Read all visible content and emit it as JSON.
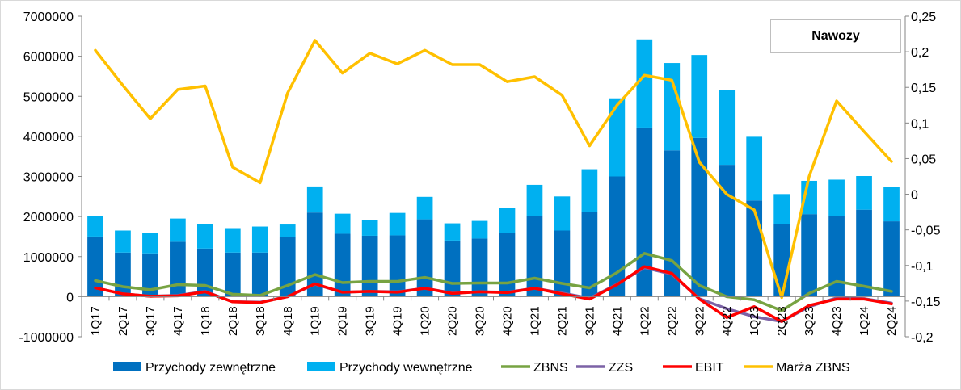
{
  "chart_data": {
    "type": "bar",
    "title": "Nawozy",
    "categories": [
      "1Q17",
      "2Q17",
      "3Q17",
      "4Q17",
      "1Q18",
      "2Q18",
      "3Q18",
      "4Q18",
      "1Q19",
      "2Q19",
      "3Q19",
      "4Q19",
      "1Q20",
      "2Q20",
      "3Q20",
      "4Q20",
      "1Q21",
      "2Q21",
      "3Q21",
      "4Q21",
      "1Q22",
      "2Q22",
      "3Q22",
      "4Q22",
      "1Q23",
      "2Q23",
      "3Q23",
      "4Q23",
      "1Q24",
      "2Q24"
    ],
    "y_left": {
      "min": -1000000,
      "max": 7000000,
      "step": 1000000,
      "ticks": [
        "-1000000",
        "0",
        "1000000",
        "2000000",
        "3000000",
        "4000000",
        "5000000",
        "6000000",
        "7000000"
      ]
    },
    "y_right": {
      "min": -0.2,
      "max": 0.25,
      "step": 0.05,
      "ticks": [
        "-0,2",
        "-0,15",
        "-0,1",
        "-0,05",
        "0",
        "0,05",
        "0,1",
        "0,15",
        "0,2",
        "0,25"
      ]
    },
    "legend_position": "bottom",
    "grid": false,
    "series": [
      {
        "name": "Przychody zewnętrzne",
        "kind": "bar-stacked",
        "axis": "left",
        "color": "#0070C0",
        "values": [
          1500000,
          1100000,
          1080000,
          1370000,
          1200000,
          1100000,
          1100000,
          1480000,
          2100000,
          1570000,
          1520000,
          1530000,
          1930000,
          1400000,
          1450000,
          1590000,
          2010000,
          1650000,
          2110000,
          3000000,
          4220000,
          3650000,
          3960000,
          3290000,
          2400000,
          1820000,
          2060000,
          2010000,
          2170000,
          1880000
        ]
      },
      {
        "name": "Przychody wewnętrzne",
        "kind": "bar-stacked",
        "axis": "left",
        "color": "#00B0F0",
        "values": [
          510000,
          550000,
          510000,
          580000,
          610000,
          610000,
          650000,
          320000,
          650000,
          500000,
          400000,
          560000,
          560000,
          430000,
          440000,
          620000,
          780000,
          850000,
          1070000,
          1950000,
          2200000,
          2180000,
          2070000,
          1860000,
          1590000,
          740000,
          830000,
          910000,
          840000,
          850000
        ]
      },
      {
        "name": "ZBNS",
        "kind": "line",
        "axis": "left",
        "color": "#77A342",
        "values": [
          400000,
          250000,
          170000,
          300000,
          280000,
          60000,
          30000,
          280000,
          550000,
          350000,
          380000,
          380000,
          480000,
          330000,
          340000,
          340000,
          460000,
          330000,
          220000,
          600000,
          1080000,
          900000,
          280000,
          0,
          -80000,
          -350000,
          80000,
          380000,
          260000,
          130000
        ]
      },
      {
        "name": "ZZS",
        "kind": "line",
        "axis": "left",
        "color": "#7C62A6",
        "values": [
          220000,
          70000,
          10000,
          30000,
          130000,
          -130000,
          -140000,
          0,
          310000,
          110000,
          130000,
          120000,
          210000,
          90000,
          120000,
          110000,
          210000,
          90000,
          -40000,
          310000,
          720000,
          560000,
          -50000,
          -300000,
          -500000,
          -620000,
          -250000,
          -30000,
          -50000,
          -160000
        ]
      },
      {
        "name": "EBIT",
        "kind": "line",
        "axis": "left",
        "color": "#FF0000",
        "values": [
          220000,
          70000,
          10000,
          20000,
          120000,
          -130000,
          -150000,
          0,
          320000,
          110000,
          130000,
          110000,
          210000,
          80000,
          120000,
          100000,
          210000,
          70000,
          -60000,
          300000,
          750000,
          580000,
          -60000,
          -520000,
          -250000,
          -620000,
          -220000,
          -60000,
          -60000,
          -180000
        ]
      },
      {
        "name": "Marża ZBNS",
        "kind": "line",
        "axis": "right",
        "color": "#FFC000",
        "values": [
          0.202,
          0.153,
          0.106,
          0.147,
          0.152,
          0.038,
          0.016,
          0.142,
          0.216,
          0.17,
          0.198,
          0.183,
          0.202,
          0.182,
          0.182,
          0.158,
          0.165,
          0.139,
          0.068,
          0.125,
          0.167,
          0.16,
          0.045,
          0.0,
          -0.022,
          -0.145,
          0.025,
          0.131,
          0.088,
          0.046
        ]
      }
    ]
  }
}
